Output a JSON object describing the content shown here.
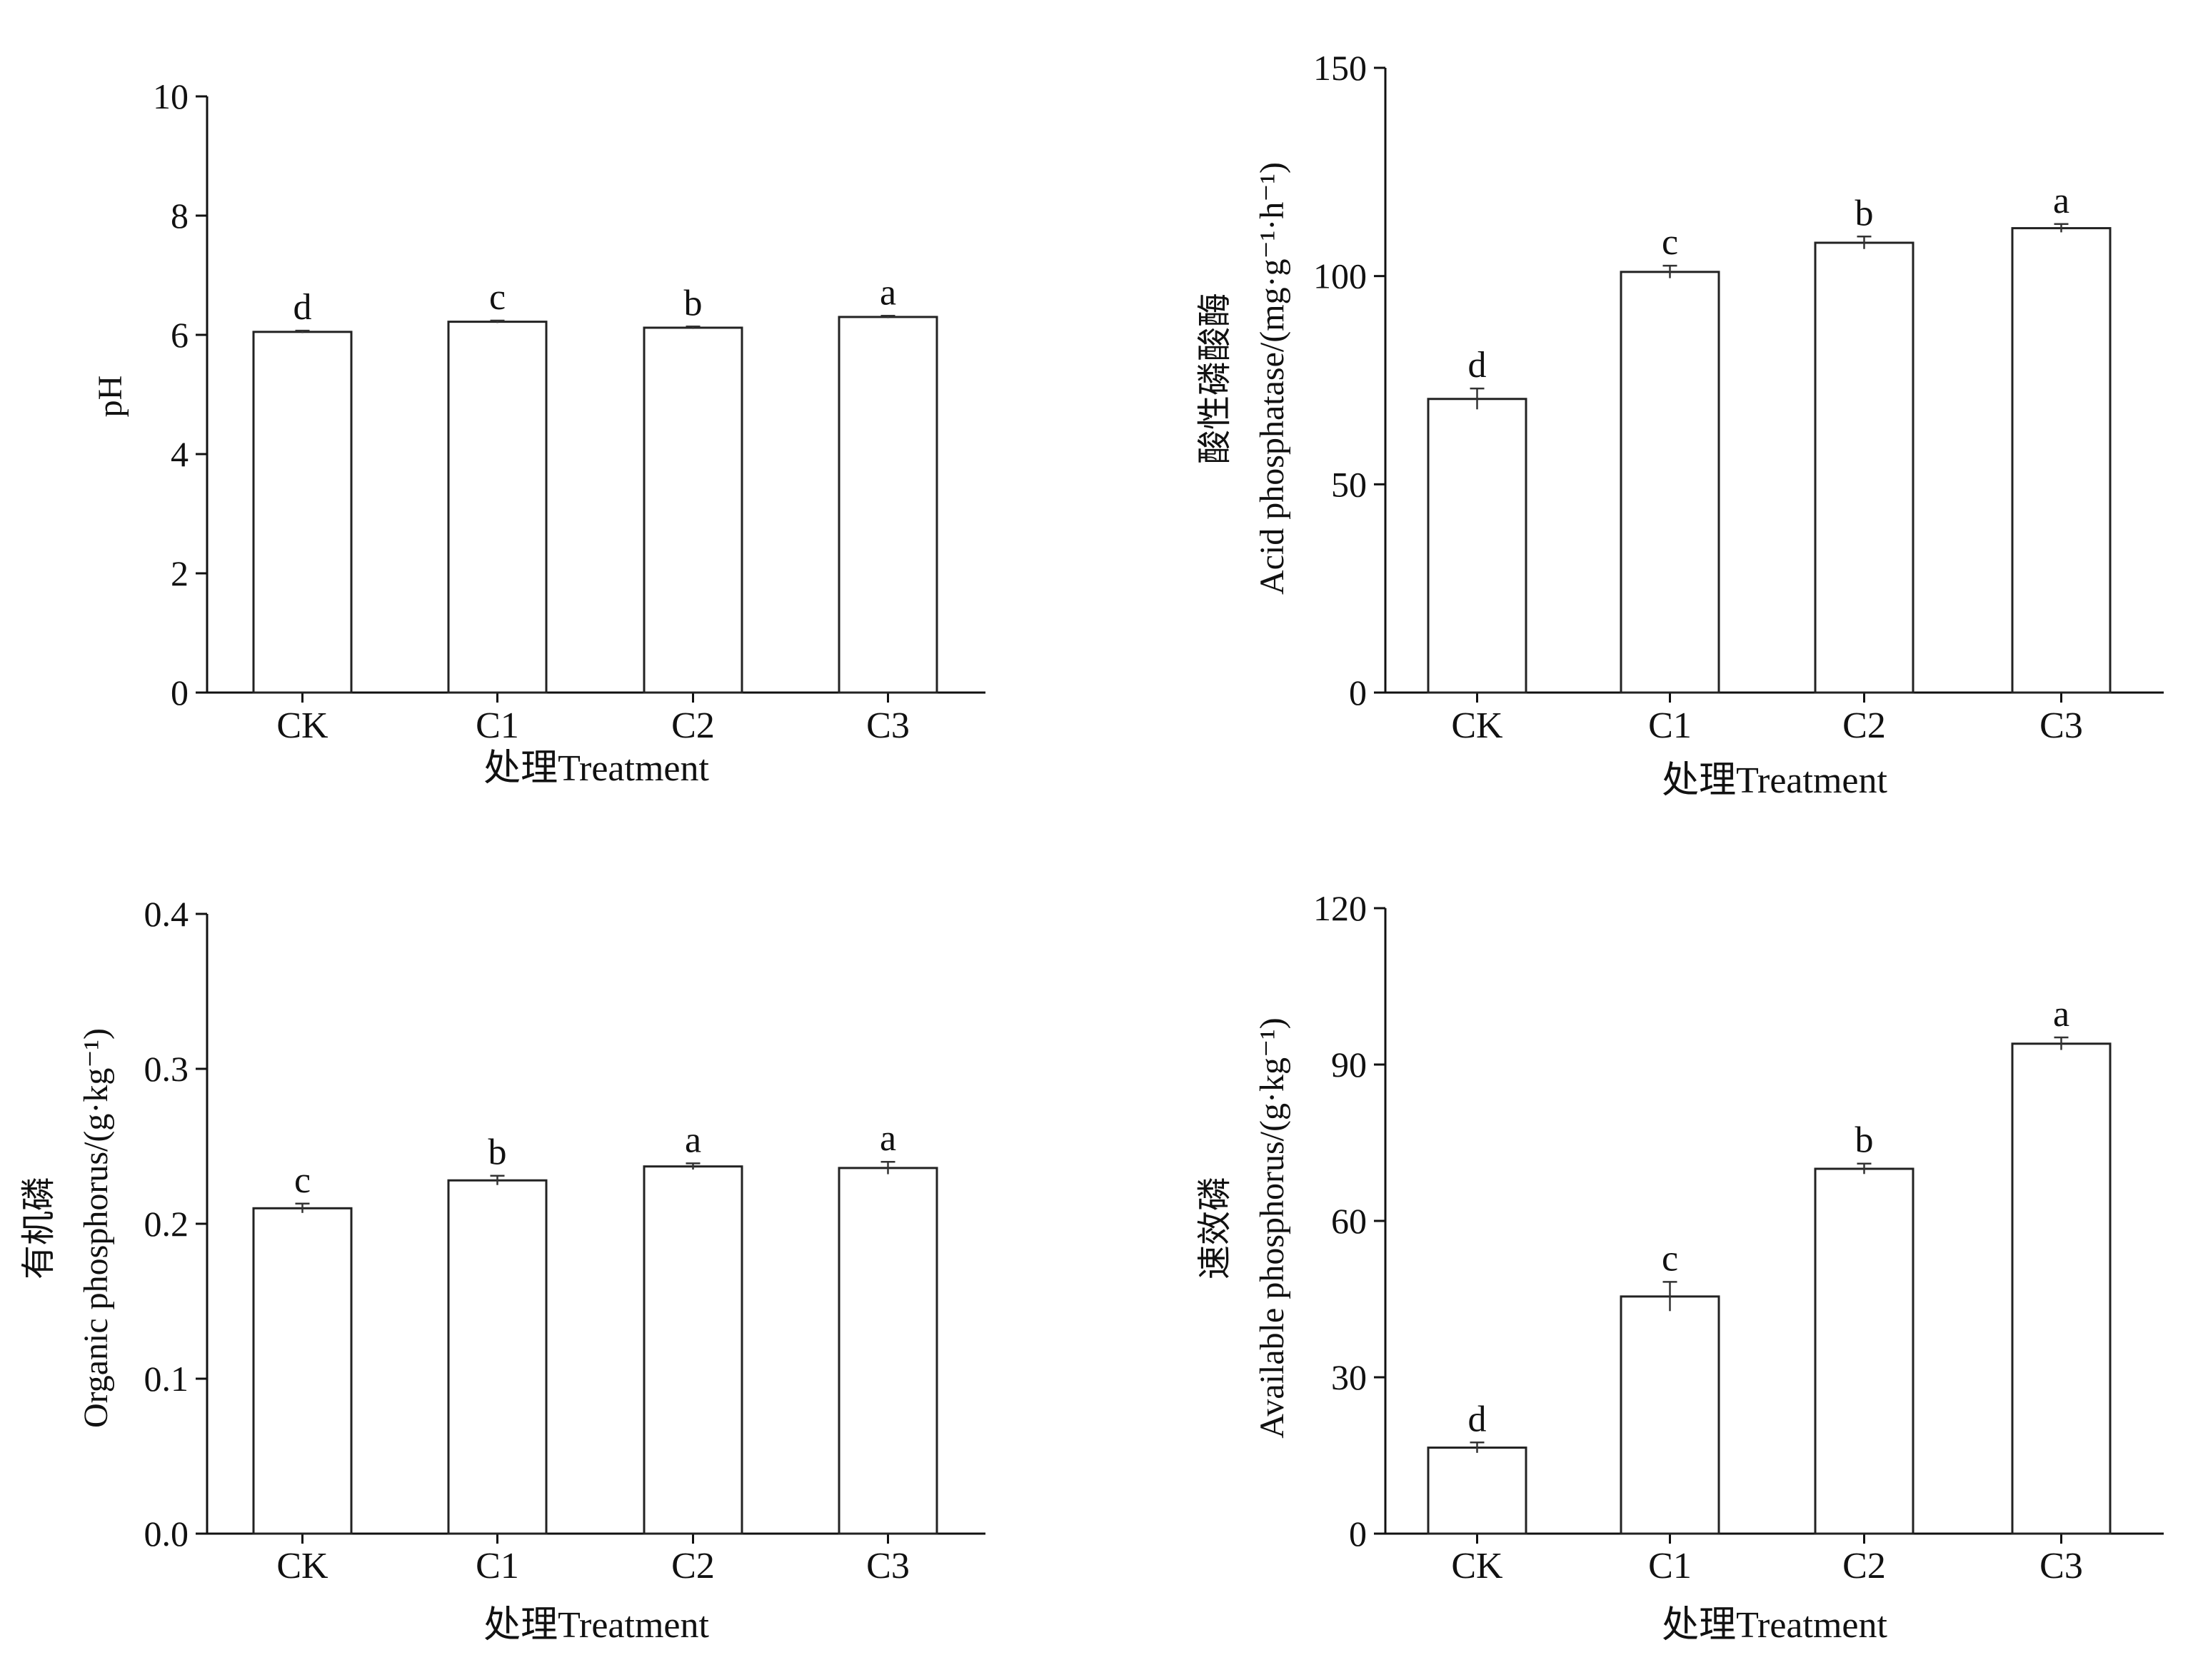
{
  "figure_title": "",
  "chart_data": [
    {
      "type": "bar",
      "id": "ph",
      "title": "",
      "categories": [
        "CK",
        "C1",
        "C2",
        "C3"
      ],
      "values": [
        6.05,
        6.22,
        6.12,
        6.3
      ],
      "errors": [
        0.02,
        0.02,
        0.02,
        0.02
      ],
      "significance": [
        "d",
        "c",
        "b",
        "a"
      ],
      "ylim": [
        0,
        10
      ],
      "yticks": [
        0,
        2,
        4,
        6,
        8,
        10
      ],
      "ytick_labels": [
        "0",
        "2",
        "4",
        "6",
        "8",
        "10"
      ],
      "ylabel_lines": [
        "pH"
      ],
      "xlabel": "处理Treatment",
      "grid": false
    },
    {
      "type": "bar",
      "id": "acid-phosphatase",
      "title": "",
      "categories": [
        "CK",
        "C1",
        "C2",
        "C3"
      ],
      "values": [
        70.5,
        101,
        108,
        111.5
      ],
      "errors": [
        2.5,
        1.5,
        1.5,
        1.0
      ],
      "significance": [
        "d",
        "c",
        "b",
        "a"
      ],
      "ylim": [
        0,
        150
      ],
      "yticks": [
        0,
        50,
        100,
        150
      ],
      "ytick_labels": [
        "0",
        "50",
        "100",
        "150"
      ],
      "ylabel_lines": [
        "酸性磷酸酶",
        "Acid phosphatase/(mg·g⁻¹·h⁻¹)"
      ],
      "xlabel": "处理Treatment",
      "grid": false
    },
    {
      "type": "bar",
      "id": "organic-phosphorus",
      "title": "",
      "categories": [
        "CK",
        "C1",
        "C2",
        "C3"
      ],
      "values": [
        0.21,
        0.228,
        0.237,
        0.236
      ],
      "errors": [
        0.003,
        0.003,
        0.002,
        0.004
      ],
      "significance": [
        "c",
        "b",
        "a",
        "a"
      ],
      "ylim": [
        0,
        0.4
      ],
      "yticks": [
        0,
        0.1,
        0.2,
        0.3,
        0.4
      ],
      "ytick_labels": [
        "0.0",
        "0.1",
        "0.2",
        "0.3",
        "0.4"
      ],
      "ylabel_lines": [
        "有机磷",
        "Organic phosphorus/(g·kg⁻¹)"
      ],
      "xlabel": "处理Treatment",
      "grid": false
    },
    {
      "type": "bar",
      "id": "available-phosphorus",
      "title": "",
      "categories": [
        "CK",
        "C1",
        "C2",
        "C3"
      ],
      "values": [
        16.5,
        45.5,
        70,
        94
      ],
      "errors": [
        1.0,
        2.8,
        1.0,
        1.2
      ],
      "significance": [
        "d",
        "c",
        "b",
        "a"
      ],
      "ylim": [
        0,
        120
      ],
      "yticks": [
        0,
        30,
        60,
        90,
        120
      ],
      "ytick_labels": [
        "0",
        "30",
        "60",
        "90",
        "120"
      ],
      "ylabel_lines": [
        "速效磷",
        "Available phosphorus/(g·kg⁻¹)"
      ],
      "xlabel": "处理Treatment",
      "grid": false
    }
  ]
}
